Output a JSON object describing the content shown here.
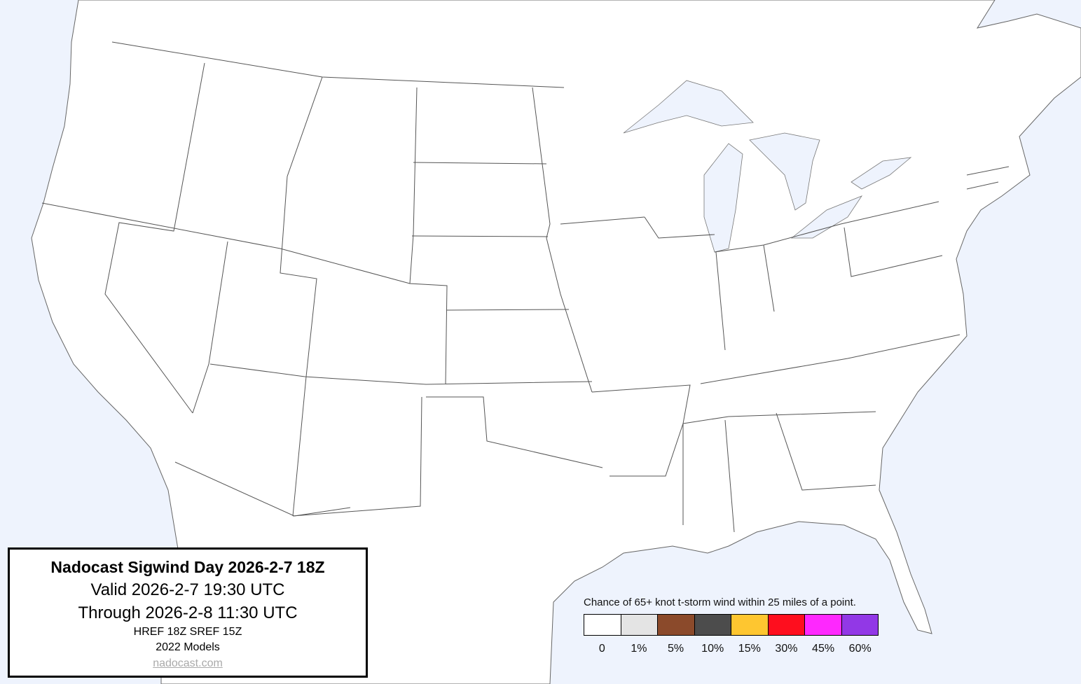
{
  "info": {
    "title": "Nadocast Sigwind Day 2026-2-7 18Z",
    "valid": "Valid 2026-2-7 19:30 UTC",
    "through": "Through 2026-2-8 11:30 UTC",
    "models": "HREF 18Z SREF 15Z",
    "model_year": "2022 Models",
    "site": "nadocast.com"
  },
  "legend": {
    "title": "Chance of 65+ knot t-storm wind within 25 miles of a point.",
    "bins": [
      {
        "label": "0",
        "color": "#ffffff"
      },
      {
        "label": "1%",
        "color": "#e4e4e4"
      },
      {
        "label": "5%",
        "color": "#8b4a2b"
      },
      {
        "label": "10%",
        "color": "#4c4c4c"
      },
      {
        "label": "15%",
        "color": "#fec630"
      },
      {
        "label": "30%",
        "color": "#fe0e1e"
      },
      {
        "label": "45%",
        "color": "#fe28fe"
      },
      {
        "label": "60%",
        "color": "#9238e6"
      }
    ]
  },
  "colors": {
    "water": "#eef3fd",
    "land": "#ffffff",
    "borders": "#555555"
  }
}
